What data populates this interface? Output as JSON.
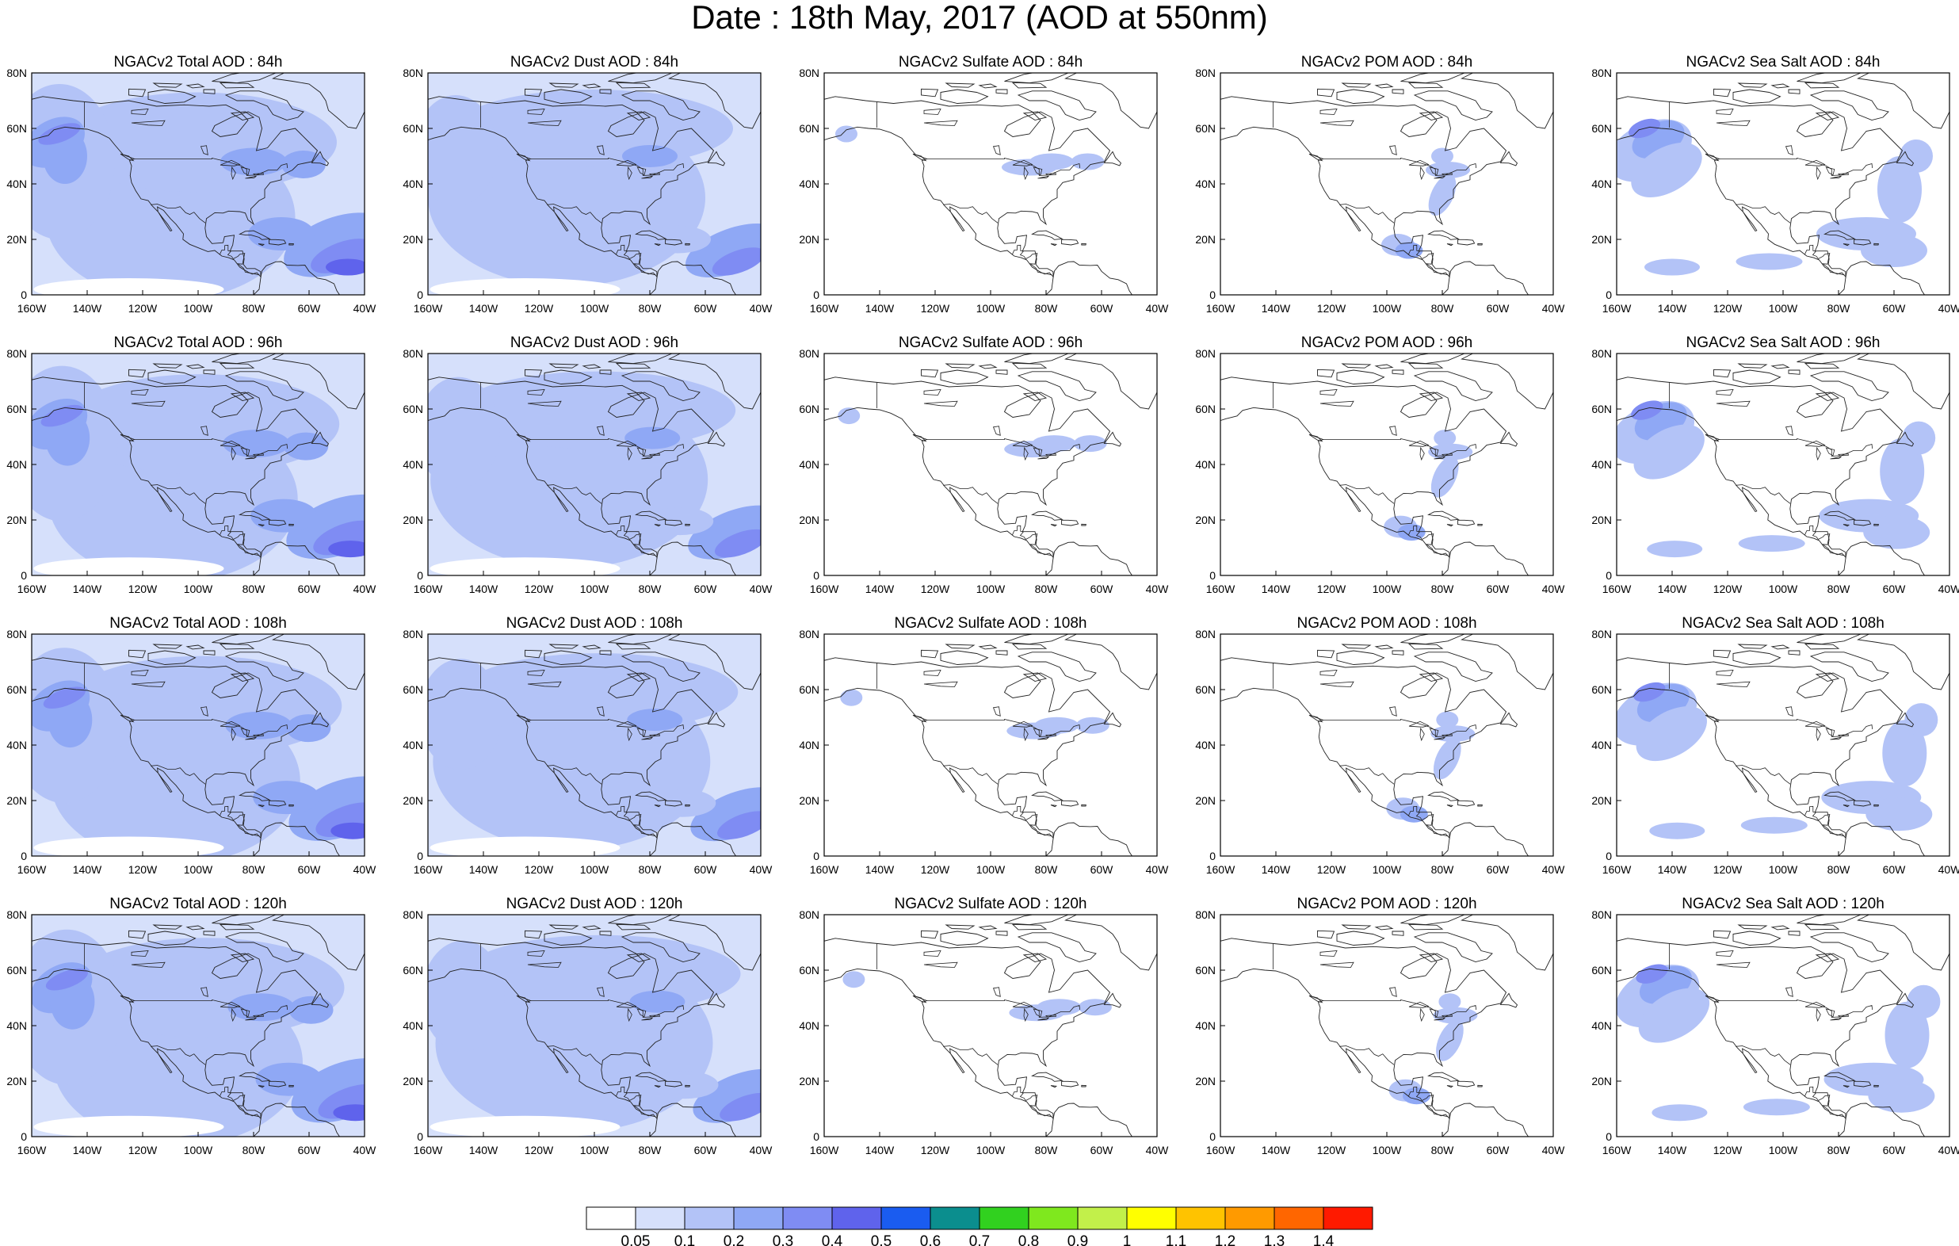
{
  "title": "Date : 18th May, 2017 (AOD at 550nm)",
  "x_ticks": [
    "160W",
    "140W",
    "120W",
    "100W",
    "80W",
    "60W",
    "40W"
  ],
  "y_ticks": [
    "80N",
    "60N",
    "40N",
    "20N",
    "0"
  ],
  "panels": [
    [
      {
        "title": "NGACv2 Total AOD : 84h",
        "species": "total"
      },
      {
        "title": "NGACv2 Dust AOD : 84h",
        "species": "dust"
      },
      {
        "title": "NGACv2 Sulfate AOD : 84h",
        "species": "sulfate"
      },
      {
        "title": "NGACv2 POM AOD : 84h",
        "species": "pom"
      },
      {
        "title": "NGACv2 Sea Salt AOD : 84h",
        "species": "seasalt"
      }
    ],
    [
      {
        "title": "NGACv2 Total AOD : 96h",
        "species": "total"
      },
      {
        "title": "NGACv2 Dust AOD : 96h",
        "species": "dust"
      },
      {
        "title": "NGACv2 Sulfate AOD : 96h",
        "species": "sulfate"
      },
      {
        "title": "NGACv2 POM AOD : 96h",
        "species": "pom"
      },
      {
        "title": "NGACv2 Sea Salt AOD : 96h",
        "species": "seasalt"
      }
    ],
    [
      {
        "title": "NGACv2 Total AOD : 108h",
        "species": "total"
      },
      {
        "title": "NGACv2 Dust AOD : 108h",
        "species": "dust"
      },
      {
        "title": "NGACv2 Sulfate AOD : 108h",
        "species": "sulfate"
      },
      {
        "title": "NGACv2 POM AOD : 108h",
        "species": "pom"
      },
      {
        "title": "NGACv2 Sea Salt AOD : 108h",
        "species": "seasalt"
      }
    ],
    [
      {
        "title": "NGACv2 Total AOD : 120h",
        "species": "total"
      },
      {
        "title": "NGACv2 Dust AOD : 120h",
        "species": "dust"
      },
      {
        "title": "NGACv2 Sulfate AOD : 120h",
        "species": "sulfate"
      },
      {
        "title": "NGACv2 POM AOD : 120h",
        "species": "pom"
      },
      {
        "title": "NGACv2 Sea Salt  AOD : 120h",
        "species": "seasalt"
      }
    ]
  ],
  "colorbar": {
    "labels": [
      "0.05",
      "0.1",
      "0.2",
      "0.3",
      "0.4",
      "0.5",
      "0.6",
      "0.7",
      "0.8",
      "0.9",
      "1",
      "1.1",
      "1.2",
      "1.3",
      "1.4"
    ],
    "colors": [
      "#ffffff",
      "#d6e0fb",
      "#b3c3f7",
      "#8fa8f5",
      "#7f8cf3",
      "#5f63ec",
      "#1a5cf0",
      "#0b8e8e",
      "#31d11f",
      "#7fe81e",
      "#c2f04a",
      "#ffff00",
      "#ffc300",
      "#ff9a00",
      "#ff6600",
      "#ff1a00"
    ]
  },
  "map_colors": {
    "c1": "#d6e0fb",
    "c2": "#b3c3f7",
    "c3": "#8fa8f5",
    "c4": "#7f8cf3",
    "c5": "#5f63ec"
  }
}
